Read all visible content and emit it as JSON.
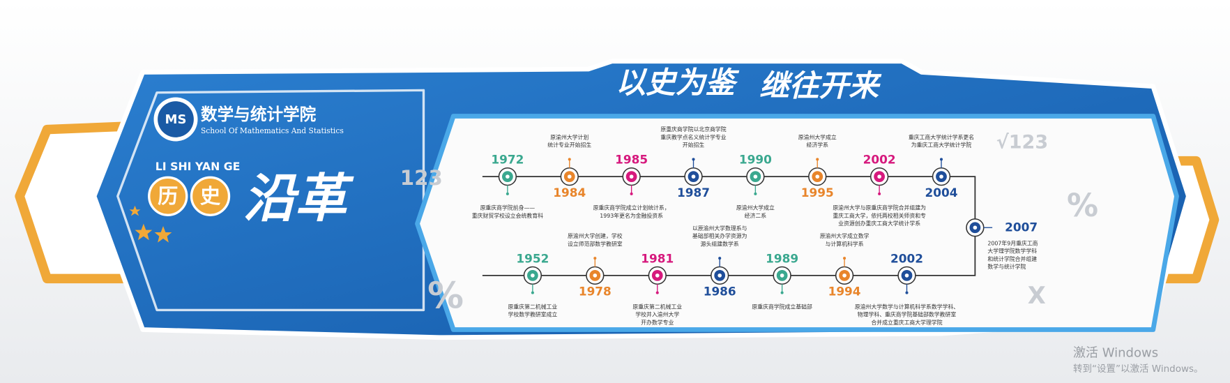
{
  "header": {
    "slogan_left": "以史为鉴",
    "slogan_right": "继往开来"
  },
  "school": {
    "name": "数学与统计学院",
    "name_en": "School Of Mathematics And Statistics"
  },
  "section": {
    "pinyin": "LI SHI YAN GE",
    "char1": "历",
    "char2": "史",
    "title": "沿革"
  },
  "timeline": {
    "top_row": [
      {
        "year": "1972",
        "color": "#3aa88f",
        "desc": [
          "原重庆商学院前身——",
          "重庆财贸学校设立会统教育科"
        ]
      },
      {
        "year": "1984",
        "color": "#e8852b",
        "desc": [
          "原渝州大学计划",
          "统计专业开始招生"
        ]
      },
      {
        "year": "1985",
        "color": "#d6197d",
        "desc": [
          "原重庆商学院成立计划统计系，",
          "1993年更名为金融投资系"
        ]
      },
      {
        "year": "1987",
        "color": "#1f4e9a",
        "desc": [
          "原重庆商学院以北京商学院",
          "重庆教学点名义统计学专业",
          "开始招生"
        ]
      },
      {
        "year": "1990",
        "color": "#3aa88f",
        "desc": [
          "原渝州大学成立",
          "经济二系"
        ]
      },
      {
        "year": "1995",
        "color": "#e8852b",
        "desc": [
          "原渝州大学成立",
          "经济学系"
        ]
      },
      {
        "year": "2002",
        "color": "#d6197d",
        "desc": [
          "原渝州大学与原重庆商学院合并组建为",
          "重庆工商大学，依托两校相关师资和专",
          "业资源创办重庆工商大学统计学系"
        ]
      },
      {
        "year": "2004",
        "color": "#1f4e9a",
        "desc": [
          "重庆工商大学统计学系更名",
          "为重庆工商大学统计学院"
        ]
      }
    ],
    "end": {
      "year": "2007",
      "color": "#1f4e9a",
      "desc": [
        "2007年9月重庆工商",
        "大学理学院数学学科",
        "和统计学院合并组建",
        "数学与统计学院"
      ]
    },
    "bottom_row": [
      {
        "year": "1952",
        "color": "#3aa88f",
        "desc": [
          "原重庆第二机械工业",
          "学校数学教研室成立"
        ]
      },
      {
        "year": "1978",
        "color": "#e8852b",
        "desc": [
          "原渝州大学创建，学校",
          "设立师范部数学教研室"
        ]
      },
      {
        "year": "1981",
        "color": "#d6197d",
        "desc": [
          "原重庆第二机械工业",
          "学校并入渝州大学",
          "开办数学专业"
        ]
      },
      {
        "year": "1986",
        "color": "#1f4e9a",
        "desc": [
          "以原渝州大学数理系与",
          "基础部相关办学资源为",
          "源头组建数学系"
        ]
      },
      {
        "year": "1989",
        "color": "#3aa88f",
        "desc": [
          "原重庆商学院成立基础部"
        ]
      },
      {
        "year": "1994",
        "color": "#e8852b",
        "desc": [
          "原渝州大学成立数学",
          "与计算机科学系"
        ]
      },
      {
        "year": "2002",
        "color": "#1f4e9a",
        "desc": [
          "原渝州大学数学与计算机科学系数学学科、",
          "物理学科、重庆商学院基础部数学教研室",
          "合并成立重庆工商大学理学院"
        ]
      }
    ]
  },
  "decor": [
    "√123",
    "123",
    "%",
    "%",
    "X"
  ],
  "watermark": {
    "line1": "激活 Windows",
    "line2": "转到“设置”以激活 Windows。"
  }
}
